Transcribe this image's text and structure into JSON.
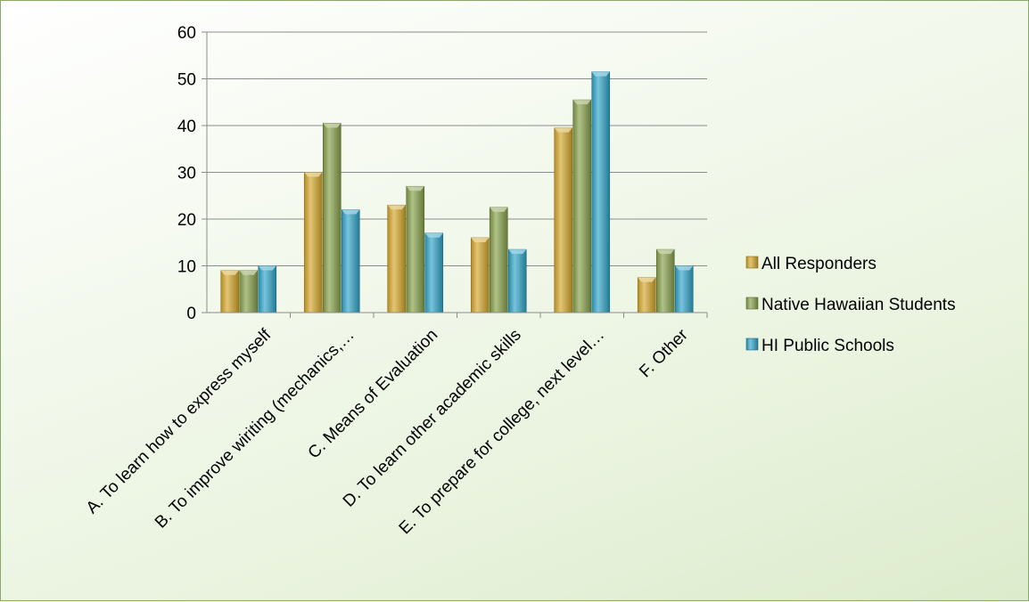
{
  "chart_data": {
    "type": "bar",
    "title": "",
    "xlabel": "",
    "ylabel": "",
    "ylim": [
      0,
      60
    ],
    "yticks": [
      0,
      10,
      20,
      30,
      40,
      50,
      60
    ],
    "grid": true,
    "legend_position": "right",
    "categories": [
      "A. To learn how to express myself",
      "B. To improve wiriting (mechanics,…",
      "C. Means of Evaluation",
      "D. To learn other academic skills",
      "E. To prepare for college, next level…",
      "F. Other"
    ],
    "series": [
      {
        "name": "All Responders",
        "color": "#d4a62a",
        "values": [
          9,
          30,
          23,
          16,
          39.5,
          7.5
        ]
      },
      {
        "name": "Native Hawaiian Students",
        "color": "#86a04a",
        "values": [
          9,
          40.5,
          27,
          22.5,
          45.5,
          13.5
        ]
      },
      {
        "name": "HI Public Schools",
        "color": "#2fa3c7",
        "values": [
          10,
          22,
          17,
          13.5,
          51.5,
          10
        ]
      }
    ]
  }
}
